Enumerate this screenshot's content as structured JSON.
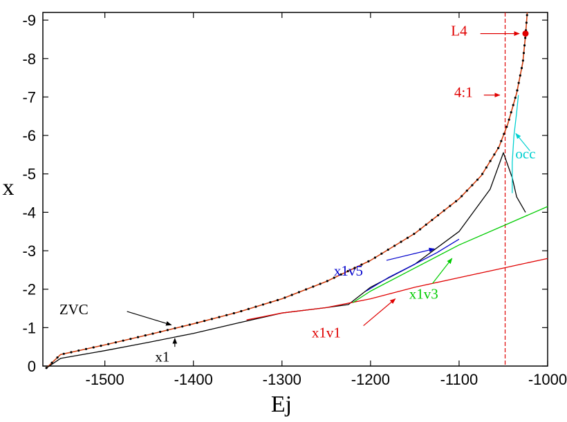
{
  "chart_data": {
    "type": "line",
    "xlabel": "Ej",
    "ylabel": "x",
    "xlim": [
      -1570,
      -1000
    ],
    "ylim": [
      0,
      -9.2
    ],
    "x_ticks": [
      -1500,
      -1400,
      -1300,
      -1200,
      -1100,
      -1000
    ],
    "y_ticks": [
      0,
      -1,
      -2,
      -3,
      -4,
      -5,
      -6,
      -7,
      -8,
      -9
    ],
    "grid": false,
    "legend": "none",
    "series": [
      {
        "name": "ZVC",
        "color": "#d04010",
        "marker_color": "#000000",
        "points": [
          [
            -1566,
            0.05
          ],
          [
            -1550,
            -0.3
          ],
          [
            -1500,
            -0.55
          ],
          [
            -1450,
            -0.82
          ],
          [
            -1400,
            -1.1
          ],
          [
            -1350,
            -1.4
          ],
          [
            -1300,
            -1.75
          ],
          [
            -1250,
            -2.2
          ],
          [
            -1200,
            -2.75
          ],
          [
            -1150,
            -3.45
          ],
          [
            -1100,
            -4.35
          ],
          [
            -1075,
            -4.95
          ],
          [
            -1055,
            -5.7
          ],
          [
            -1045,
            -6.3
          ],
          [
            -1035,
            -7.1
          ],
          [
            -1028,
            -7.9
          ],
          [
            -1025,
            -8.6
          ],
          [
            -1023,
            -9.2
          ]
        ]
      },
      {
        "name": "x1",
        "color": "#000000",
        "points": [
          [
            -1566,
            0.05
          ],
          [
            -1550,
            -0.2
          ],
          [
            -1500,
            -0.4
          ],
          [
            -1450,
            -0.62
          ],
          [
            -1400,
            -0.85
          ],
          [
            -1350,
            -1.12
          ],
          [
            -1300,
            -1.38
          ],
          [
            -1250,
            -1.52
          ],
          [
            -1225,
            -1.6
          ],
          [
            -1200,
            -2.05
          ],
          [
            -1150,
            -2.65
          ],
          [
            -1100,
            -3.5
          ],
          [
            -1065,
            -4.6
          ],
          [
            -1050,
            -5.55
          ],
          [
            -1040,
            -4.9
          ],
          [
            -1035,
            -4.4
          ],
          [
            -1025,
            -4.0
          ]
        ]
      },
      {
        "name": "x1v1",
        "color": "#e00000",
        "points": [
          [
            -1340,
            -1.2
          ],
          [
            -1300,
            -1.38
          ],
          [
            -1250,
            -1.52
          ],
          [
            -1200,
            -1.75
          ],
          [
            -1150,
            -2.05
          ],
          [
            -1100,
            -2.3
          ],
          [
            -1050,
            -2.55
          ],
          [
            -1000,
            -2.8
          ]
        ]
      },
      {
        "name": "x1v3",
        "color": "#00cc00",
        "points": [
          [
            -1220,
            -1.65
          ],
          [
            -1200,
            -1.95
          ],
          [
            -1150,
            -2.55
          ],
          [
            -1100,
            -3.15
          ],
          [
            -1050,
            -3.65
          ],
          [
            -1000,
            -4.15
          ]
        ]
      },
      {
        "name": "x1v5",
        "color": "#0000cc",
        "points": [
          [
            -1205,
            -1.95
          ],
          [
            -1180,
            -2.3
          ],
          [
            -1150,
            -2.65
          ],
          [
            -1125,
            -2.95
          ],
          [
            -1100,
            -3.3
          ]
        ]
      },
      {
        "name": "occ",
        "color": "#00d0d0",
        "points": [
          [
            -1040,
            -4.5
          ],
          [
            -1040,
            -5.3
          ],
          [
            -1038,
            -6.0
          ],
          [
            -1035,
            -6.6
          ],
          [
            -1033,
            -7.05
          ]
        ]
      }
    ],
    "vertical_line": {
      "x": -1048,
      "color": "#e00000",
      "style": "dashed"
    },
    "point_L4": {
      "x": -1025,
      "y": -8.65,
      "color": "#e00000"
    },
    "annotations": [
      {
        "text": "L4",
        "color": "#e00000",
        "tail": [
          -1076,
          -8.65
        ],
        "head": [
          -1032,
          -8.65
        ],
        "label_at": [
          -1100,
          -8.6
        ]
      },
      {
        "text": "4:1",
        "color": "#e00000",
        "tail": [
          -1072,
          -7.05
        ],
        "head": [
          -1054,
          -7.05
        ],
        "label_at": [
          -1095,
          -7.0
        ]
      },
      {
        "text": "occ",
        "color": "#00d0d0",
        "tail": [
          -1020,
          -5.6
        ],
        "head": [
          -1036,
          -6.05
        ],
        "label_at": [
          -1025,
          -5.4
        ]
      },
      {
        "text": "x1v5",
        "color": "#0000cc",
        "tail": [
          -1182,
          -2.75
        ],
        "head": [
          -1128,
          -3.05
        ],
        "label_at": [
          -1225,
          -2.35
        ]
      },
      {
        "text": "x1v3",
        "color": "#00cc00",
        "tail": [
          -1130,
          -2.15
        ],
        "head": [
          -1108,
          -2.8
        ],
        "label_at": [
          -1140,
          -1.75
        ]
      },
      {
        "text": "x1v1",
        "color": "#e00000",
        "tail": [
          -1208,
          -1.05
        ],
        "head": [
          -1172,
          -1.75
        ],
        "label_at": [
          -1250,
          -0.75
        ]
      },
      {
        "text": "ZVC",
        "color": "#000000",
        "tail": [
          -1475,
          -1.42
        ],
        "head": [
          -1425,
          -1.07
        ],
        "label_at": [
          -1535,
          -1.35
        ]
      },
      {
        "text": "x1",
        "color": "#000000",
        "tail": [
          -1421,
          -0.5
        ],
        "head": [
          -1421,
          -0.72
        ],
        "label_at": [
          -1435,
          -0.12
        ]
      }
    ]
  }
}
